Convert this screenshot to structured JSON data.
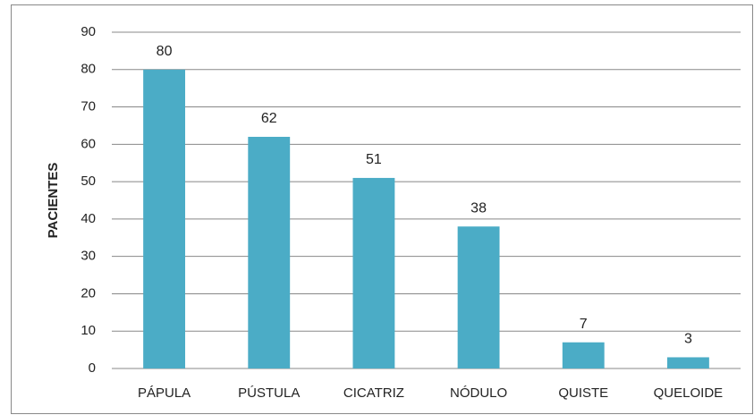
{
  "chart_data": {
    "type": "bar",
    "y_label": "PACIENTES",
    "categories": [
      "PÁPULA",
      "PÚSTULA",
      "CICATRIZ",
      "NÓDULO",
      "QUISTE",
      "QUELOIDE"
    ],
    "values": [
      80,
      62,
      51,
      38,
      7,
      3
    ],
    "color": "#4bacc6",
    "ylim": [
      0,
      90
    ],
    "yticks": [
      0,
      10,
      20,
      30,
      40,
      50,
      60,
      70,
      80,
      90
    ],
    "grid": true
  }
}
